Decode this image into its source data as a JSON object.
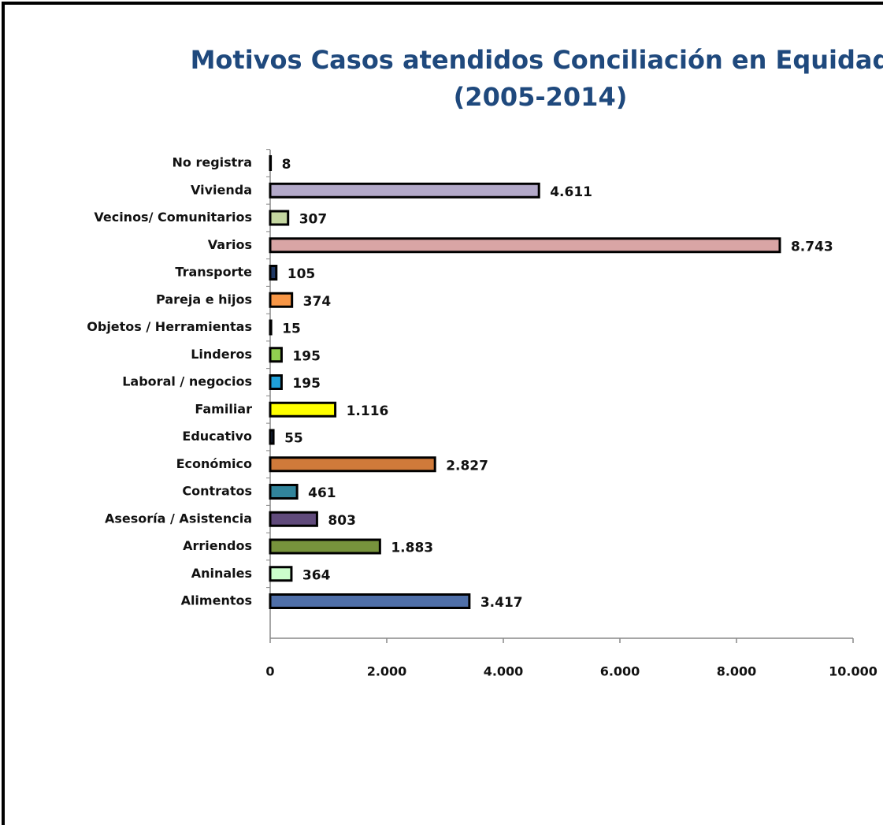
{
  "chart_data": {
    "type": "hbar",
    "title": [
      "Motivos Casos atendidos Conciliación en Equidad",
      "(2005-2014)"
    ],
    "categories": [
      "No registra",
      "Vivienda",
      "Vecinos/ Comunitarios",
      "Varios",
      "Transporte",
      "Pareja e hijos",
      "Objetos / Herramientas",
      "Linderos",
      "Laboral / negocios",
      "Familiar",
      "Educativo",
      "Económico",
      "Contratos",
      "Asesoría / Asistencia",
      "Arriendos",
      "Aninales",
      "Alimentos"
    ],
    "values": [
      8,
      4611,
      307,
      8743,
      105,
      374,
      15,
      195,
      195,
      1116,
      55,
      2827,
      461,
      803,
      1883,
      364,
      3417
    ],
    "value_labels": [
      "8",
      "4.611",
      "307",
      "8.743",
      "105",
      "374",
      "15",
      "195",
      "195",
      "1.116",
      "55",
      "2.827",
      "461",
      "803",
      "1.883",
      "364",
      "3.417"
    ],
    "colors": [
      "#1f3050",
      "#b3a9c9",
      "#c4d6a0",
      "#d9a5a5",
      "#1f3864",
      "#f79646",
      "#1f3050",
      "#92d050",
      "#1fa0d8",
      "#ffff00",
      "#1f3050",
      "#d07a3a",
      "#31849b",
      "#604a7b",
      "#77933c",
      "#ccffcc",
      "#4f6fa8"
    ],
    "xlim": [
      0,
      10000
    ],
    "xticks": [
      0,
      {
        "value": 2000,
        "label": "2.000"
      },
      {
        "value": 4000,
        "label": "4.000"
      },
      {
        "value": 6000,
        "label": "6.000"
      },
      {
        "value": 8000,
        "label": "8.000"
      },
      {
        "value": 10000,
        "label": "10.000"
      }
    ],
    "grid": false
  }
}
